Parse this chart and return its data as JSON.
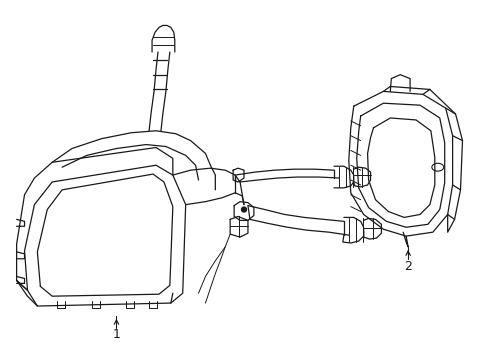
{
  "background_color": "#ffffff",
  "line_color": "#1a1a1a",
  "label1": "1",
  "label2": "2",
  "figsize": [
    4.89,
    3.6
  ],
  "dpi": 100
}
